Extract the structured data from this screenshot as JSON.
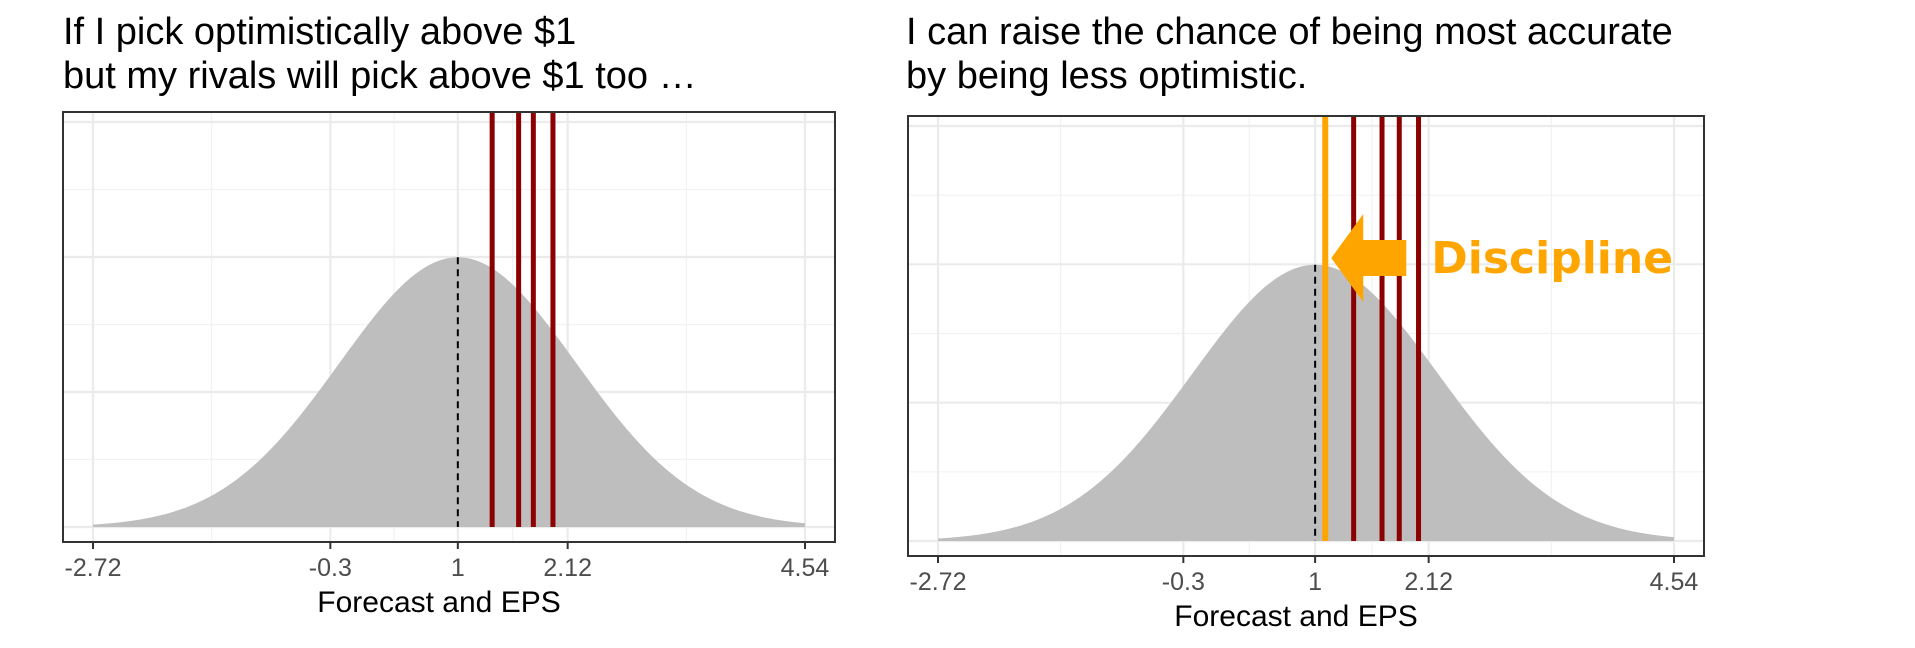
{
  "chart_data": [
    {
      "type": "area",
      "title_lines": [
        "If I pick optimistically above  $1",
        "but my rivals will pick above $1 too …"
      ],
      "xlabel": "Forecast and EPS",
      "ylabel": "",
      "xlim": [
        -2.72,
        4.54
      ],
      "x_ticks": [
        -2.72,
        -0.3,
        1,
        2.12,
        4.54
      ],
      "x_tick_labels": [
        "-2.72",
        "-0.3",
        "1",
        "2.12",
        "4.54"
      ],
      "distribution": {
        "kind": "normal",
        "mean": 1,
        "sd": 1.21,
        "fill": "#BEBEBE"
      },
      "mean_line": {
        "x": 1,
        "style": "dashed",
        "color": "#000000"
      },
      "rival_forecasts": {
        "x": [
          1.35,
          1.62,
          1.77,
          1.97
        ],
        "color": "#8B0000"
      },
      "own_forecast": null,
      "annotation": null,
      "grid": true
    },
    {
      "type": "area",
      "title_lines": [
        "I can raise the chance of being most accurate",
        "by being less optimistic."
      ],
      "xlabel": "Forecast and EPS",
      "ylabel": "",
      "xlim": [
        -2.72,
        4.54
      ],
      "x_ticks": [
        -2.72,
        -0.3,
        1,
        2.12,
        4.54
      ],
      "x_tick_labels": [
        "-2.72",
        "-0.3",
        "1",
        "2.12",
        "4.54"
      ],
      "distribution": {
        "kind": "normal",
        "mean": 1,
        "sd": 1.21,
        "fill": "#BEBEBE"
      },
      "mean_line": {
        "x": 1,
        "style": "dashed",
        "color": "#000000"
      },
      "rival_forecasts": {
        "x": [
          1.38,
          1.66,
          1.83,
          2.02
        ],
        "color": "#8B0000"
      },
      "own_forecast": {
        "x": 1.1,
        "color": "#FFA500"
      },
      "annotation": {
        "text": "Discipline",
        "color": "#FFA500",
        "arrow": "left"
      },
      "grid": true
    }
  ]
}
